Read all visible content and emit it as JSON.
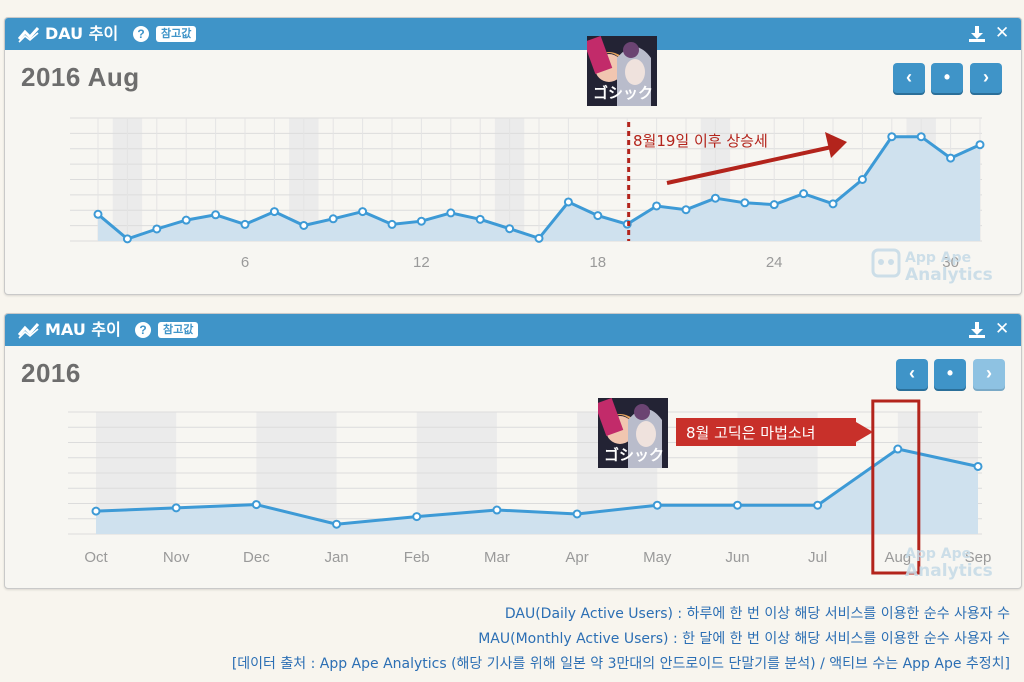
{
  "dau_panel": {
    "title": "DAU 추이",
    "help": "?",
    "badge": "참고값",
    "period": "2016 Aug",
    "nav": {
      "prev": "‹",
      "current": "•",
      "next": "›"
    },
    "annotation": "8월19일 이후 상승세",
    "watermark": {
      "line1": "App Ape",
      "line2": "Analytics"
    }
  },
  "mau_panel": {
    "title": "MAU 추이",
    "help": "?",
    "badge": "참고값",
    "period": "2016",
    "nav": {
      "prev": "‹",
      "current": "•",
      "next": "›"
    },
    "annotation": "8월 고딕은 마법소녀",
    "watermark": {
      "line1": "App Ape",
      "line2": "Analytics"
    }
  },
  "colors": {
    "header": "#3f94c8",
    "line": "#3d9ad6",
    "area": "#cfe1ee",
    "annotation_red": "#b3241c",
    "footer_text": "#2c6fb4"
  },
  "icons": [
    "trend-icon",
    "help-icon",
    "download-icon",
    "close-icon",
    "chevron-left-icon",
    "dot-icon",
    "chevron-right-icon"
  ],
  "footer": {
    "line1": "DAU(Daily Active Users) : 하루에 한 번 이상 해당 서비스를 이용한 순수 사용자 수",
    "line2": "MAU(Monthly Active Users) : 한 달에 한 번 이상 해당 서비스를 이용한 순수 사용자 수",
    "line3": "[데이터 출처 : App Ape Analytics (해당 기사를 위해 일본 약 3만대의 안드로이드 단말기를 분석) / 액티브 수는 App Ape 추정치]"
  },
  "chart_data": [
    {
      "type": "area",
      "x": [
        1,
        2,
        3,
        4,
        5,
        6,
        7,
        8,
        9,
        10,
        11,
        12,
        13,
        14,
        15,
        16,
        17,
        18,
        19,
        20,
        21,
        22,
        23,
        24,
        25,
        26,
        27,
        28,
        29,
        30,
        31
      ],
      "values": [
        1.0,
        0.08,
        0.45,
        0.78,
        0.98,
        0.62,
        1.1,
        0.58,
        0.83,
        1.1,
        0.62,
        0.74,
        1.05,
        0.81,
        0.46,
        0.1,
        1.46,
        0.95,
        0.63,
        1.31,
        1.17,
        1.6,
        1.43,
        1.36,
        1.77,
        1.39,
        2.3,
        3.9,
        3.9,
        3.1,
        3.6
      ],
      "xticks": [
        "6",
        "12",
        "18",
        "24",
        "30"
      ],
      "xtick_values": [
        6,
        12,
        18,
        24,
        30
      ],
      "ylim": [
        0,
        4.6
      ],
      "grid": true,
      "marker_x": 19
    },
    {
      "type": "area",
      "categories": [
        "Oct",
        "Nov",
        "Dec",
        "Jan",
        "Feb",
        "Mar",
        "Apr",
        "May",
        "Jun",
        "Jul",
        "Aug",
        "Sep"
      ],
      "values": [
        1.05,
        1.2,
        1.35,
        0.45,
        0.8,
        1.1,
        0.92,
        1.32,
        1.32,
        1.32,
        3.9,
        3.1
      ],
      "ylim": [
        0,
        5.6
      ],
      "grid": true,
      "highlight_category": "Aug"
    }
  ]
}
